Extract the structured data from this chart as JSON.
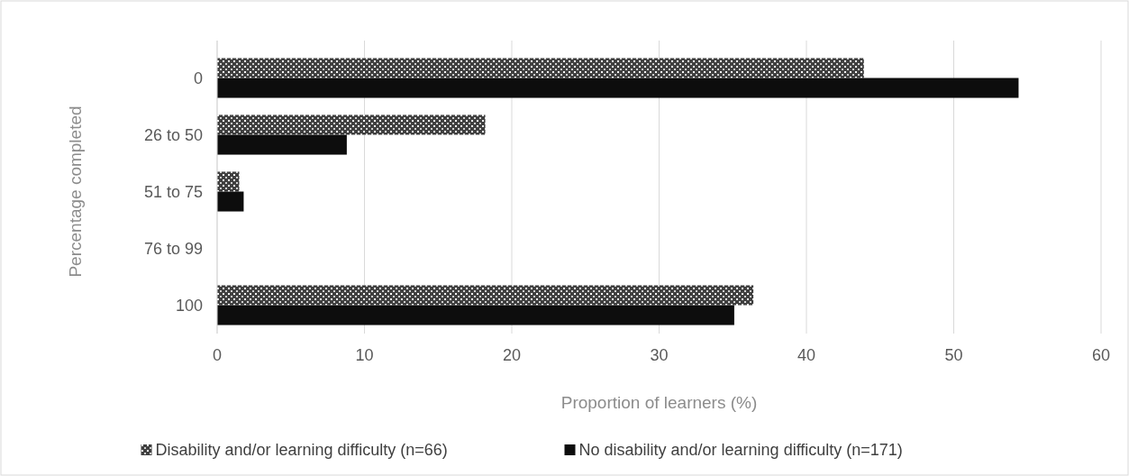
{
  "chart_data": {
    "type": "bar",
    "orientation": "horizontal",
    "categories": [
      "0",
      "26 to 50",
      "51 to 75",
      "76 to 99",
      "100"
    ],
    "series": [
      {
        "name": "Disability and/or learning difficulty (n=66)",
        "color": "#404040",
        "values": [
          43.9,
          18.2,
          1.5,
          0,
          36.4
        ]
      },
      {
        "name": "No disability and/or learning difficulty (n=171)",
        "color": "#0d0d0d",
        "values": [
          54.4,
          8.8,
          1.8,
          0,
          35.1
        ]
      }
    ],
    "xlim": [
      0,
      60
    ],
    "xticks": [
      0,
      10,
      20,
      30,
      40,
      50,
      60
    ],
    "xlabel": "Proportion of learners (%)",
    "ylabel": "Percentage completed",
    "grid": "x",
    "legend": "bottom"
  }
}
